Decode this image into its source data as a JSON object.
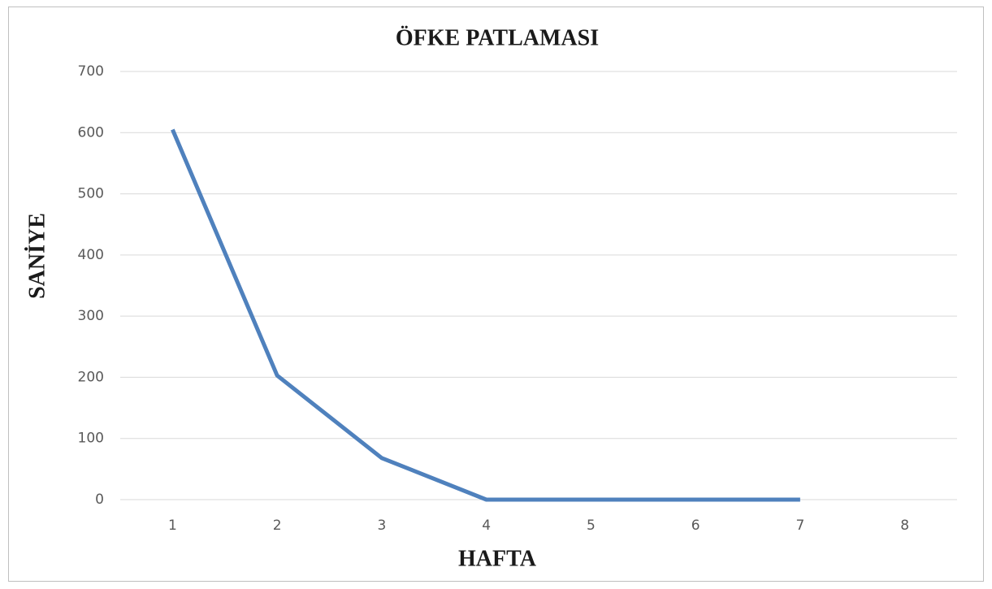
{
  "chart_data": {
    "type": "line",
    "title": "ÖFKE PATLAMASI",
    "x_label": "HAFTA",
    "y_label": "SANİYE",
    "categories": [
      "1",
      "2",
      "3",
      "4",
      "5",
      "6",
      "7",
      "8"
    ],
    "values": [
      605,
      203,
      68,
      0,
      0,
      0,
      0,
      null
    ],
    "color": "#4f81bd",
    "ylim": [
      0,
      700
    ],
    "yticks": [
      0,
      100,
      200,
      300,
      400,
      500,
      600,
      700
    ],
    "grid": true
  }
}
